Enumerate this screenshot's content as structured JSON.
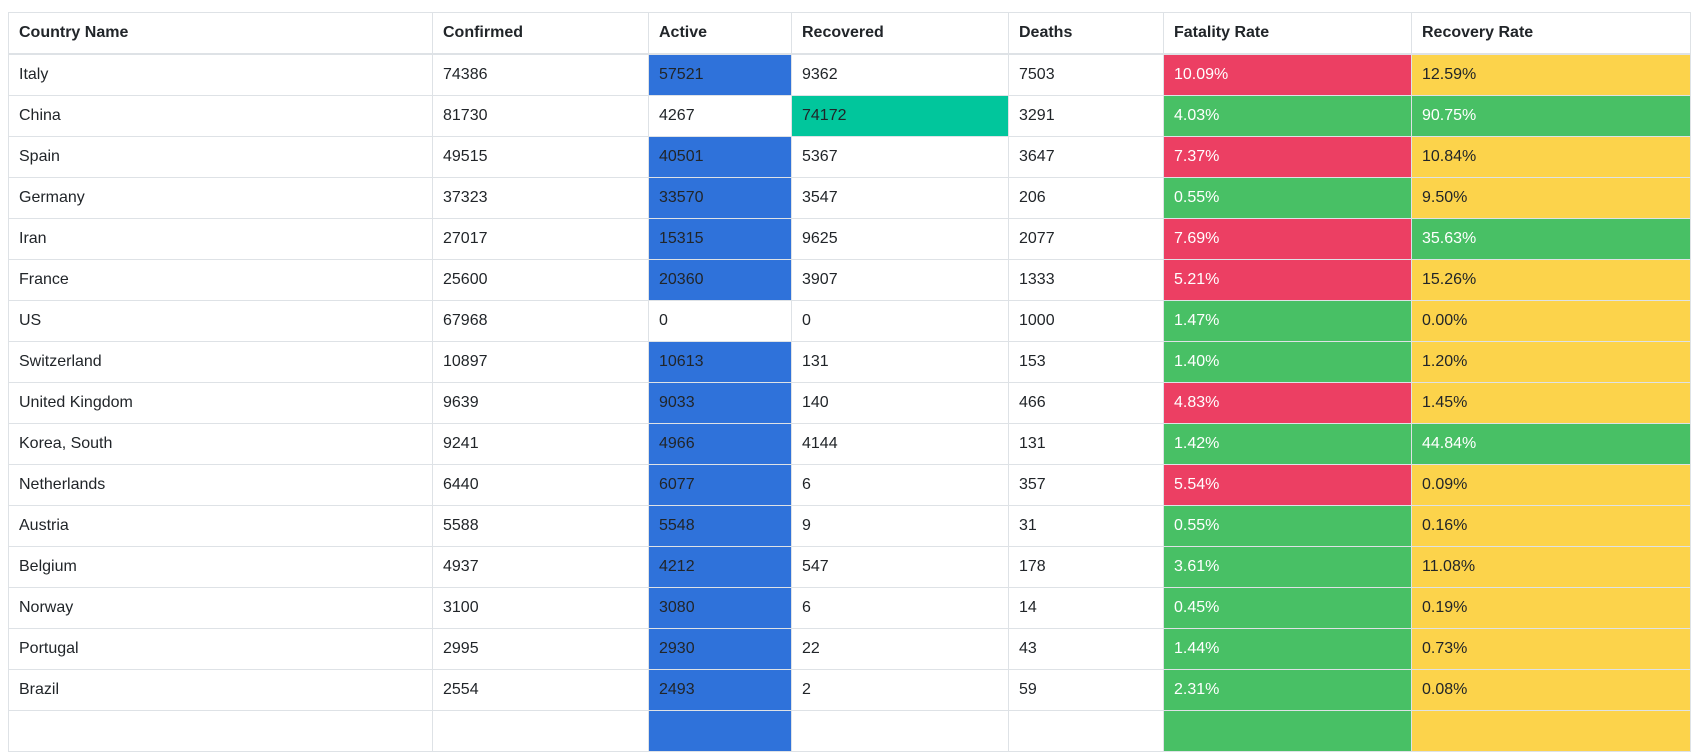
{
  "table": {
    "columns": [
      {
        "key": "country",
        "label": "Country Name"
      },
      {
        "key": "confirmed",
        "label": "Confirmed"
      },
      {
        "key": "active",
        "label": "Active"
      },
      {
        "key": "recovered",
        "label": "Recovered"
      },
      {
        "key": "deaths",
        "label": "Deaths"
      },
      {
        "key": "fatality_rate",
        "label": "Fatality Rate"
      },
      {
        "key": "recovery_rate",
        "label": "Recovery Rate"
      }
    ],
    "colors": {
      "active_highlight": "#2f72da",
      "recovered_highlight": "#01c69c",
      "fatality_high": "#ec3f63",
      "fatality_low": "#48c065",
      "recovery_high": "#48c065",
      "recovery_low": "#fcd34b",
      "border": "#dee2e6",
      "text": "#212529",
      "text_on_highlight": "#ffffff"
    },
    "rows": [
      {
        "country": "Italy",
        "confirmed": "74386",
        "active": "57521",
        "recovered": "9362",
        "deaths": "7503",
        "fatality_rate": "10.09%",
        "recovery_rate": "12.59%",
        "active_hl": true,
        "recovered_hl": false,
        "fatality_level": "high",
        "recovery_level": "low"
      },
      {
        "country": "China",
        "confirmed": "81730",
        "active": "4267",
        "recovered": "74172",
        "deaths": "3291",
        "fatality_rate": "4.03%",
        "recovery_rate": "90.75%",
        "active_hl": false,
        "recovered_hl": true,
        "fatality_level": "low",
        "recovery_level": "high"
      },
      {
        "country": "Spain",
        "confirmed": "49515",
        "active": "40501",
        "recovered": "5367",
        "deaths": "3647",
        "fatality_rate": "7.37%",
        "recovery_rate": "10.84%",
        "active_hl": true,
        "recovered_hl": false,
        "fatality_level": "high",
        "recovery_level": "low"
      },
      {
        "country": "Germany",
        "confirmed": "37323",
        "active": "33570",
        "recovered": "3547",
        "deaths": "206",
        "fatality_rate": "0.55%",
        "recovery_rate": "9.50%",
        "active_hl": true,
        "recovered_hl": false,
        "fatality_level": "low",
        "recovery_level": "low"
      },
      {
        "country": "Iran",
        "confirmed": "27017",
        "active": "15315",
        "recovered": "9625",
        "deaths": "2077",
        "fatality_rate": "7.69%",
        "recovery_rate": "35.63%",
        "active_hl": true,
        "recovered_hl": false,
        "fatality_level": "high",
        "recovery_level": "high"
      },
      {
        "country": "France",
        "confirmed": "25600",
        "active": "20360",
        "recovered": "3907",
        "deaths": "1333",
        "fatality_rate": "5.21%",
        "recovery_rate": "15.26%",
        "active_hl": true,
        "recovered_hl": false,
        "fatality_level": "high",
        "recovery_level": "low"
      },
      {
        "country": "US",
        "confirmed": "67968",
        "active": "0",
        "recovered": "0",
        "deaths": "1000",
        "fatality_rate": "1.47%",
        "recovery_rate": "0.00%",
        "active_hl": false,
        "recovered_hl": false,
        "fatality_level": "low",
        "recovery_level": "low"
      },
      {
        "country": "Switzerland",
        "confirmed": "10897",
        "active": "10613",
        "recovered": "131",
        "deaths": "153",
        "fatality_rate": "1.40%",
        "recovery_rate": "1.20%",
        "active_hl": true,
        "recovered_hl": false,
        "fatality_level": "low",
        "recovery_level": "low"
      },
      {
        "country": "United Kingdom",
        "confirmed": "9639",
        "active": "9033",
        "recovered": "140",
        "deaths": "466",
        "fatality_rate": "4.83%",
        "recovery_rate": "1.45%",
        "active_hl": true,
        "recovered_hl": false,
        "fatality_level": "high",
        "recovery_level": "low"
      },
      {
        "country": "Korea, South",
        "confirmed": "9241",
        "active": "4966",
        "recovered": "4144",
        "deaths": "131",
        "fatality_rate": "1.42%",
        "recovery_rate": "44.84%",
        "active_hl": true,
        "recovered_hl": false,
        "fatality_level": "low",
        "recovery_level": "high"
      },
      {
        "country": "Netherlands",
        "confirmed": "6440",
        "active": "6077",
        "recovered": "6",
        "deaths": "357",
        "fatality_rate": "5.54%",
        "recovery_rate": "0.09%",
        "active_hl": true,
        "recovered_hl": false,
        "fatality_level": "high",
        "recovery_level": "low"
      },
      {
        "country": "Austria",
        "confirmed": "5588",
        "active": "5548",
        "recovered": "9",
        "deaths": "31",
        "fatality_rate": "0.55%",
        "recovery_rate": "0.16%",
        "active_hl": true,
        "recovered_hl": false,
        "fatality_level": "low",
        "recovery_level": "low"
      },
      {
        "country": "Belgium",
        "confirmed": "4937",
        "active": "4212",
        "recovered": "547",
        "deaths": "178",
        "fatality_rate": "3.61%",
        "recovery_rate": "11.08%",
        "active_hl": true,
        "recovered_hl": false,
        "fatality_level": "low",
        "recovery_level": "low"
      },
      {
        "country": "Norway",
        "confirmed": "3100",
        "active": "3080",
        "recovered": "6",
        "deaths": "14",
        "fatality_rate": "0.45%",
        "recovery_rate": "0.19%",
        "active_hl": true,
        "recovered_hl": false,
        "fatality_level": "low",
        "recovery_level": "low"
      },
      {
        "country": "Portugal",
        "confirmed": "2995",
        "active": "2930",
        "recovered": "22",
        "deaths": "43",
        "fatality_rate": "1.44%",
        "recovery_rate": "0.73%",
        "active_hl": true,
        "recovered_hl": false,
        "fatality_level": "low",
        "recovery_level": "low"
      },
      {
        "country": "Brazil",
        "confirmed": "2554",
        "active": "2493",
        "recovered": "2",
        "deaths": "59",
        "fatality_rate": "2.31%",
        "recovery_rate": "0.08%",
        "active_hl": true,
        "recovered_hl": false,
        "fatality_level": "low",
        "recovery_level": "low"
      }
    ],
    "partial_row": {
      "country": "",
      "confirmed": "",
      "active": "",
      "recovered": "",
      "deaths": "",
      "fatality_rate": "",
      "recovery_rate": "",
      "active_hl": true,
      "recovered_hl": false,
      "fatality_level": "low",
      "recovery_level": "low"
    }
  }
}
